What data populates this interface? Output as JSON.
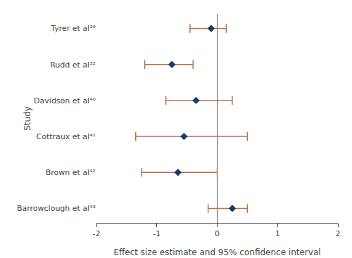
{
  "chart_data": {
    "type": "forest",
    "categories": [
      "Tyrer et al³⁹",
      "Rudd et al³²",
      "Davidson et al⁴⁰",
      "Cottraux et al⁴¹",
      "Brown et al⁴²",
      "Barrowclough et al⁴³"
    ],
    "values": [
      -0.1,
      -0.75,
      -0.35,
      -0.55,
      -0.65,
      0.25
    ],
    "color": "#1a3a6b",
    "marker": "diamond",
    "error_bars": {
      "lower": [
        -0.45,
        -1.2,
        -0.85,
        -1.35,
        -1.25,
        -0.15
      ],
      "upper": [
        0.15,
        -0.4,
        0.25,
        0.5,
        0.0,
        0.5
      ],
      "color": "#b5714e"
    },
    "reference_line": {
      "value": 0,
      "color": "#555555"
    },
    "xlim": [
      -2,
      2
    ],
    "xticks": [
      -2,
      -1,
      0,
      1,
      2
    ],
    "xlabel": "Effect size estimate and 95% confidence interval",
    "ylabel": "Study",
    "grid": false
  }
}
